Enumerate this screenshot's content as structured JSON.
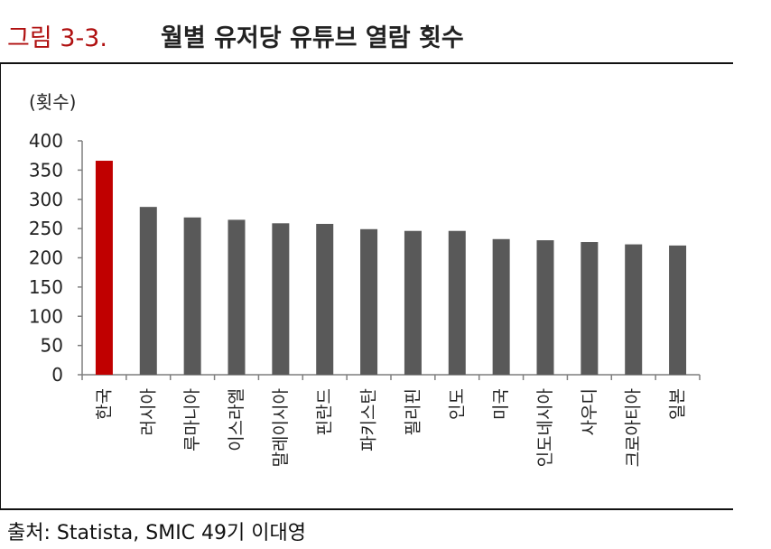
{
  "header": {
    "figure_number": "그림 3-3.",
    "title": "월별 유저당 유튜브 열람 횟수"
  },
  "footer": {
    "source": "출처: Statista, SMIC 49기 이대영"
  },
  "colors": {
    "highlight": "#c00000",
    "bar": "#595959",
    "axis": "#7f7f7f"
  },
  "chart_data": {
    "type": "bar",
    "title": "",
    "ylabel": "(횟수)",
    "xlabel": "",
    "ylim": [
      0,
      400
    ],
    "yticks": [
      0,
      50,
      100,
      150,
      200,
      250,
      300,
      350,
      400
    ],
    "grid": false,
    "categories": [
      "한국",
      "러시아",
      "루마니아",
      "이스라엘",
      "말레이시아",
      "핀란드",
      "파키스탄",
      "필리핀",
      "인도",
      "미국",
      "인도네시아",
      "사우디",
      "크로아티아",
      "일본"
    ],
    "values": [
      366,
      287,
      269,
      265,
      259,
      258,
      249,
      246,
      246,
      232,
      230,
      227,
      223,
      221
    ],
    "highlight_index": 0
  }
}
